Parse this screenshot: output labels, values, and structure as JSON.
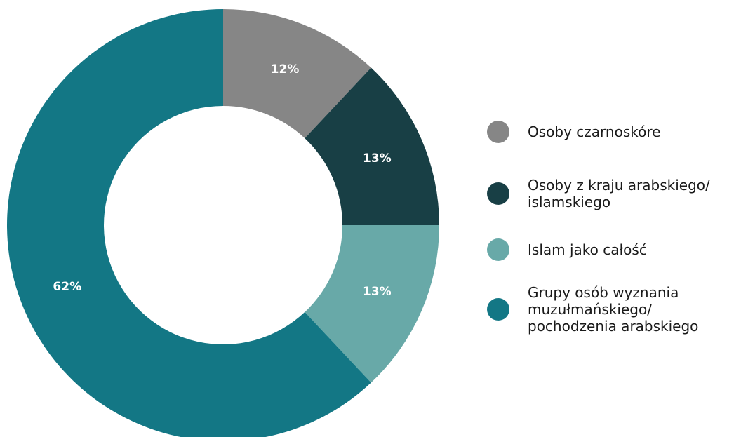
{
  "chart_data": {
    "type": "pie",
    "donut": true,
    "title": "",
    "legend_placement": "right",
    "series": [
      {
        "name": "Osoby czarnoskóre",
        "value": 12,
        "label": "12%",
        "color": "#868686"
      },
      {
        "name": "Osoby z kraju arabskiego/\nislamskiego",
        "value": 13,
        "label": "13%",
        "color": "#183F45"
      },
      {
        "name": "Islam jako całość",
        "value": 13,
        "label": "13%",
        "color": "#68A9A8"
      },
      {
        "name": "Grupy osób wyznania\nmuzułmańskiego/\npochodzenia arabskiego",
        "value": 62,
        "label": "62%",
        "color": "#137785"
      }
    ]
  }
}
